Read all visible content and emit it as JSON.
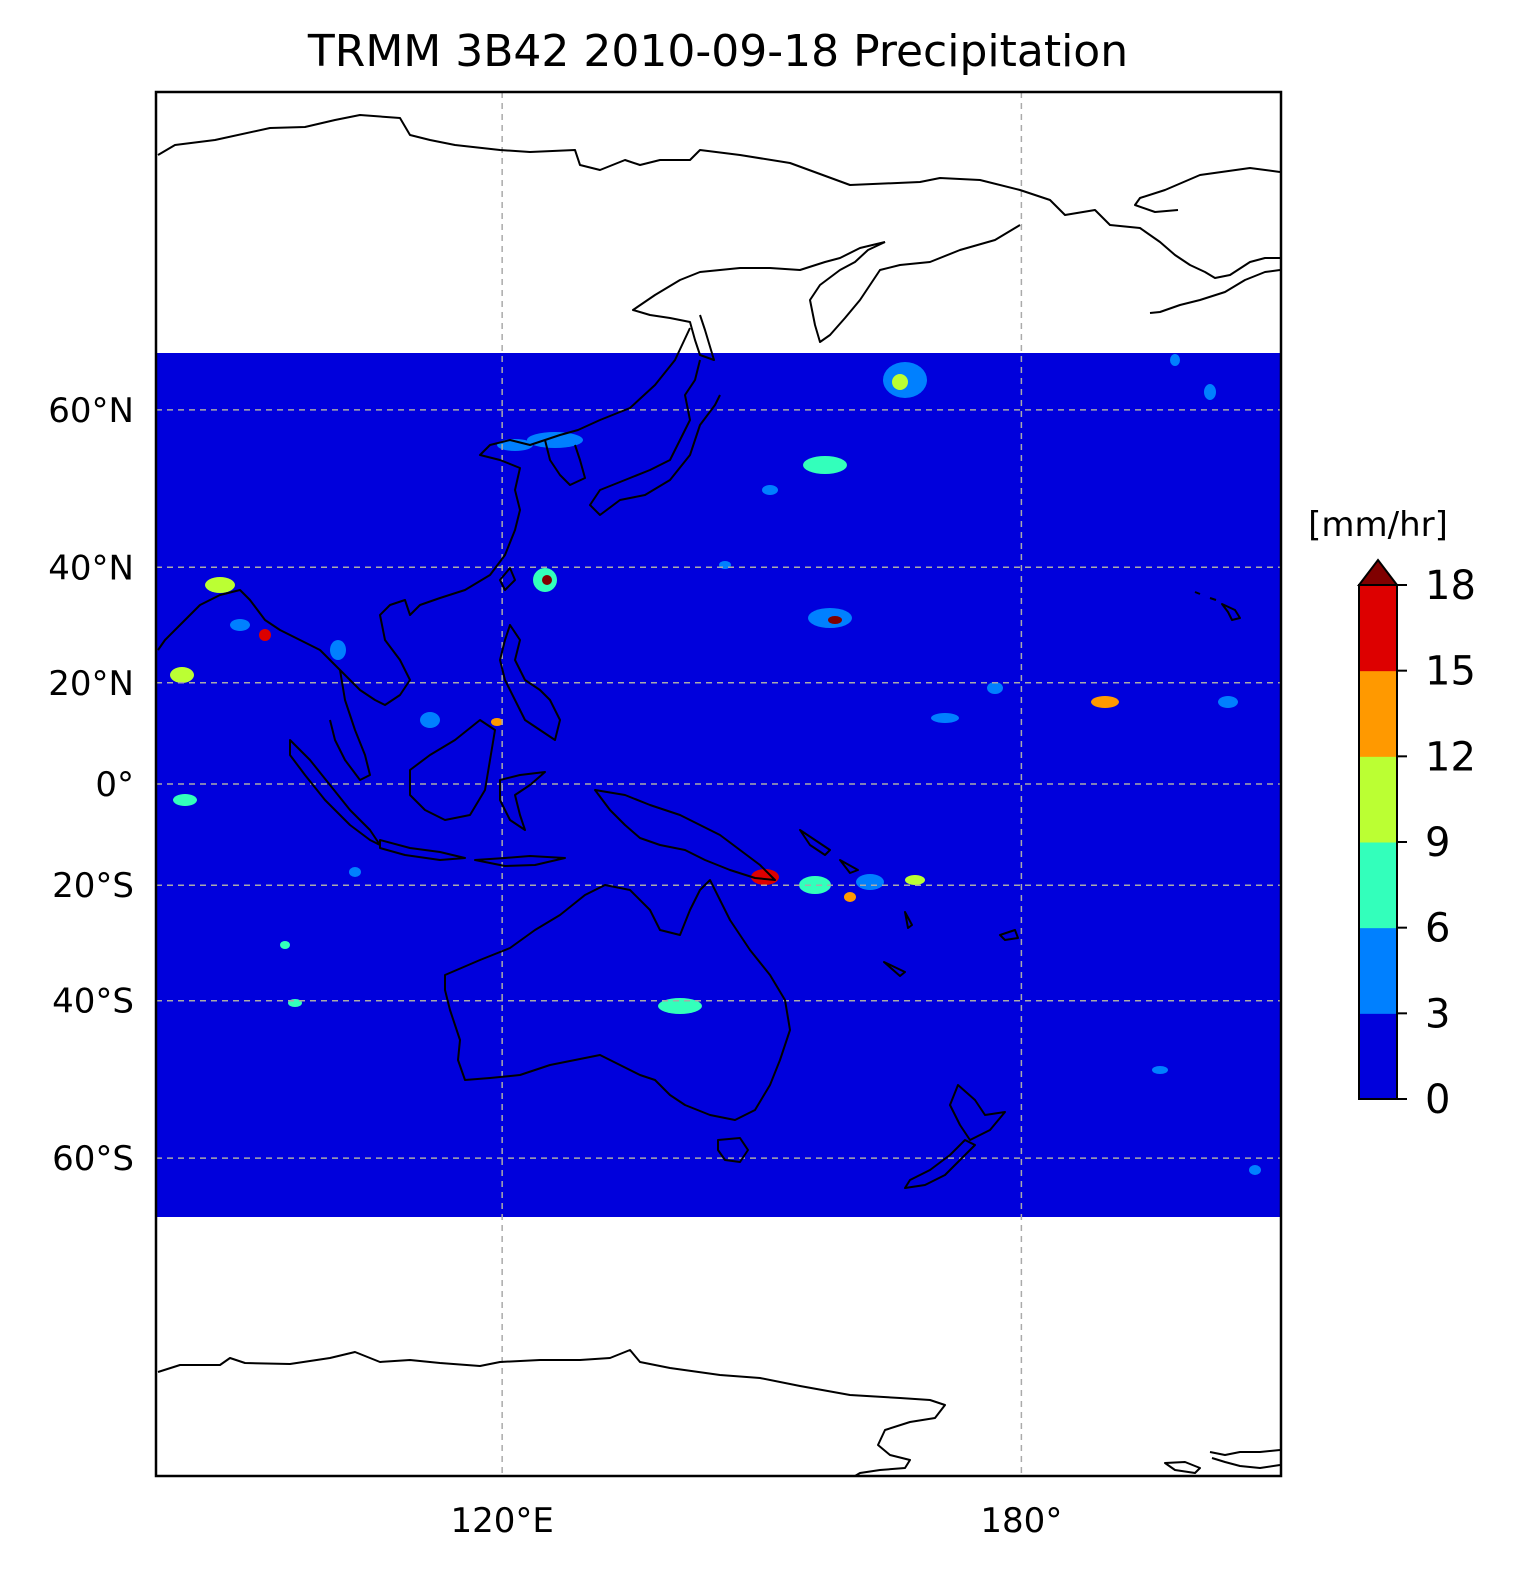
{
  "title": "TRMM 3B42 2010-09-18 Precipitation",
  "lat_axis": {
    "ticks": [
      {
        "value": 60,
        "label": "60°N"
      },
      {
        "value": 40,
        "label": "40°N"
      },
      {
        "value": 20,
        "label": "20°N"
      },
      {
        "value": 0,
        "label": "0°"
      },
      {
        "value": -20,
        "label": "20°S"
      },
      {
        "value": -40,
        "label": "40°S"
      },
      {
        "value": -60,
        "label": "60°S"
      }
    ]
  },
  "lon_axis": {
    "ticks": [
      {
        "value": 120,
        "label": "120°E"
      },
      {
        "value": 180,
        "label": "180°"
      }
    ]
  },
  "map_extent": {
    "lon": [
      80,
      210
    ],
    "lat": [
      -80,
      80
    ]
  },
  "data_extent": {
    "lat": [
      -50,
      50
    ]
  },
  "grid": true,
  "colorbar": {
    "unit": "[mm/hr]",
    "extend": "max",
    "ticks": [
      "0",
      "3",
      "6",
      "9",
      "12",
      "15",
      "18"
    ],
    "levels": [
      0,
      3,
      6,
      9,
      12,
      15,
      18
    ],
    "colors": [
      "#0000dc",
      "#0080ff",
      "#33ffbb",
      "#bbff33",
      "#ff9900",
      "#dd0000"
    ],
    "over_color": "#800000"
  },
  "colors": {
    "ocean_background": "#0000dc",
    "rain_3": "#0080ff",
    "rain_6": "#33ffbb",
    "rain_9": "#bbff33",
    "rain_12": "#ff9900",
    "rain_15": "#dd0000",
    "rain_18": "#800000"
  }
}
